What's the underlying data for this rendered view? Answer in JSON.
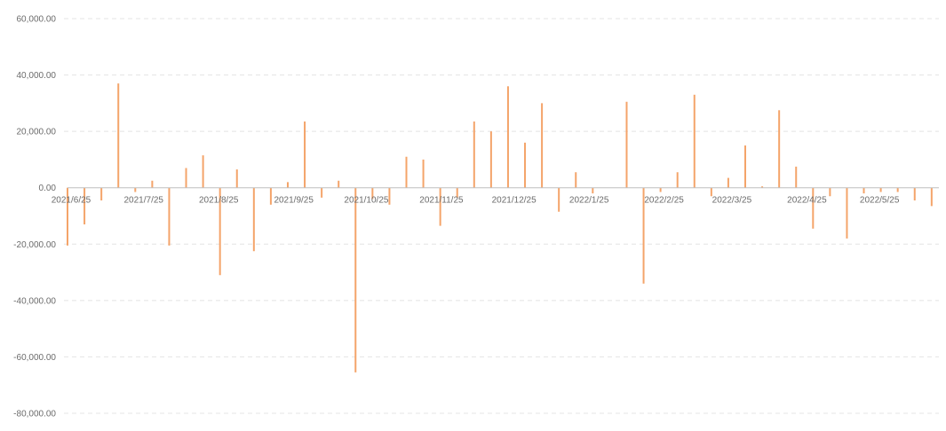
{
  "chart_data": {
    "type": "bar",
    "title": "",
    "xlabel": "",
    "ylabel": "",
    "ylim": [
      -80000,
      60000
    ],
    "grid": true,
    "legend": "none",
    "bar_color": "#F4A46A",
    "y_ticks": [
      "60,000.00",
      "40,000.00",
      "20,000.00",
      "0.00",
      "-20,000.00",
      "-40,000.00",
      "-60,000.00",
      "-80,000.00"
    ],
    "x_tick_labels": [
      "2021/6/25",
      "2021/7/25",
      "2021/8/25",
      "2021/9/25",
      "2021/10/25",
      "2021/11/25",
      "2021/12/25",
      "2022/1/25",
      "2022/2/25",
      "2022/3/25",
      "2022/4/25",
      "2022/5/25"
    ],
    "x_range": [
      "2021-06-25",
      "2022-06-20"
    ],
    "points": [
      {
        "date": "2021-06-25",
        "value": -20500
      },
      {
        "date": "2021-07-02",
        "value": -13000
      },
      {
        "date": "2021-07-09",
        "value": -4500
      },
      {
        "date": "2021-07-16",
        "value": 37000
      },
      {
        "date": "2021-07-23",
        "value": -1500
      },
      {
        "date": "2021-07-30",
        "value": 2500
      },
      {
        "date": "2021-08-06",
        "value": -20500
      },
      {
        "date": "2021-08-13",
        "value": 7000
      },
      {
        "date": "2021-08-20",
        "value": 11500
      },
      {
        "date": "2021-08-27",
        "value": -31000
      },
      {
        "date": "2021-09-03",
        "value": 6500
      },
      {
        "date": "2021-09-10",
        "value": -22500
      },
      {
        "date": "2021-09-17",
        "value": -6000
      },
      {
        "date": "2021-09-24",
        "value": 2000
      },
      {
        "date": "2021-10-01",
        "value": 23500
      },
      {
        "date": "2021-10-08",
        "value": -3500
      },
      {
        "date": "2021-10-15",
        "value": 2500
      },
      {
        "date": "2021-10-22",
        "value": -65500
      },
      {
        "date": "2021-10-29",
        "value": -4000
      },
      {
        "date": "2021-11-05",
        "value": -6000
      },
      {
        "date": "2021-11-12",
        "value": 11000
      },
      {
        "date": "2021-11-19",
        "value": 10000
      },
      {
        "date": "2021-11-26",
        "value": -13500
      },
      {
        "date": "2021-12-03",
        "value": -3500
      },
      {
        "date": "2021-12-10",
        "value": 23500
      },
      {
        "date": "2021-12-17",
        "value": 20000
      },
      {
        "date": "2021-12-24",
        "value": 36000
      },
      {
        "date": "2021-12-31",
        "value": 16000
      },
      {
        "date": "2022-01-07",
        "value": 30000
      },
      {
        "date": "2022-01-14",
        "value": -8500
      },
      {
        "date": "2022-01-21",
        "value": 5500
      },
      {
        "date": "2022-01-28",
        "value": -2000
      },
      {
        "date": "2022-02-11",
        "value": 30500
      },
      {
        "date": "2022-02-18",
        "value": -34000
      },
      {
        "date": "2022-02-25",
        "value": -1500
      },
      {
        "date": "2022-03-04",
        "value": 5500
      },
      {
        "date": "2022-03-11",
        "value": 33000
      },
      {
        "date": "2022-03-18",
        "value": -3000
      },
      {
        "date": "2022-03-25",
        "value": 3500
      },
      {
        "date": "2022-04-01",
        "value": 15000
      },
      {
        "date": "2022-04-08",
        "value": 500
      },
      {
        "date": "2022-04-15",
        "value": 27500
      },
      {
        "date": "2022-04-22",
        "value": 7500
      },
      {
        "date": "2022-04-29",
        "value": -14500
      },
      {
        "date": "2022-05-06",
        "value": -3000
      },
      {
        "date": "2022-05-13",
        "value": -18000
      },
      {
        "date": "2022-05-20",
        "value": -2000
      },
      {
        "date": "2022-05-27",
        "value": -1500
      },
      {
        "date": "2022-06-03",
        "value": -1500
      },
      {
        "date": "2022-06-10",
        "value": -4500
      },
      {
        "date": "2022-06-17",
        "value": -6500
      }
    ]
  }
}
